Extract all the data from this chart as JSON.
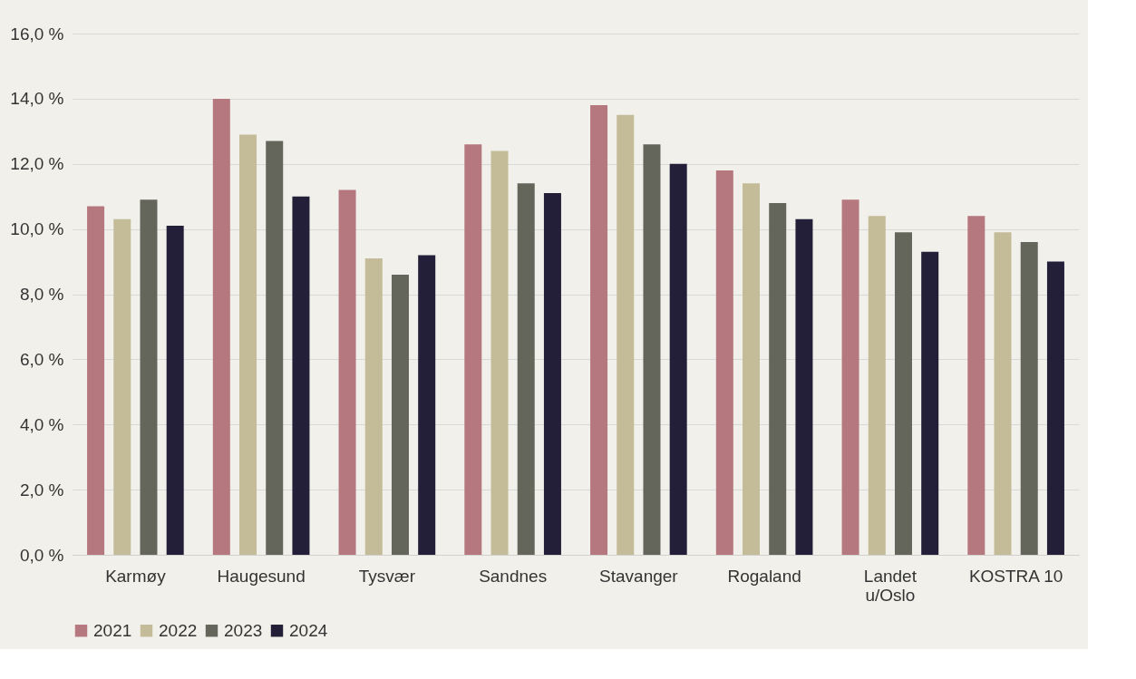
{
  "chart_data": {
    "type": "bar",
    "categories": [
      "Karmøy",
      "Haugesund",
      "Tysvær",
      "Sandnes",
      "Stavanger",
      "Rogaland",
      "Landet u/Oslo",
      "KOSTRA 10"
    ],
    "series": [
      {
        "name": "2021",
        "color": "#b5787e",
        "values": [
          10.7,
          14.0,
          11.2,
          12.6,
          13.8,
          11.8,
          10.9,
          10.4
        ]
      },
      {
        "name": "2022",
        "color": "#c4bb98",
        "values": [
          10.3,
          12.9,
          9.1,
          12.4,
          13.5,
          11.4,
          10.4,
          9.9
        ]
      },
      {
        "name": "2023",
        "color": "#64665c",
        "values": [
          10.9,
          12.7,
          8.6,
          11.4,
          12.6,
          10.8,
          9.9,
          9.6
        ]
      },
      {
        "name": "2024",
        "color": "#231f38",
        "values": [
          10.1,
          11.0,
          9.2,
          11.1,
          12.0,
          10.3,
          9.3,
          9.0
        ]
      }
    ],
    "ylim": [
      0,
      16
    ],
    "yticks": [
      {
        "value": 0,
        "label": "0,0 %"
      },
      {
        "value": 2,
        "label": "2,0 %"
      },
      {
        "value": 4,
        "label": "4,0 %"
      },
      {
        "value": 6,
        "label": "6,0 %"
      },
      {
        "value": 8,
        "label": "8,0 %"
      },
      {
        "value": 10,
        "label": "10,0 %"
      },
      {
        "value": 12,
        "label": "12,0 %"
      },
      {
        "value": 14,
        "label": "14,0 %"
      },
      {
        "value": 16,
        "label": "16,0 %"
      }
    ],
    "grid": "y",
    "legend": "bottom"
  }
}
